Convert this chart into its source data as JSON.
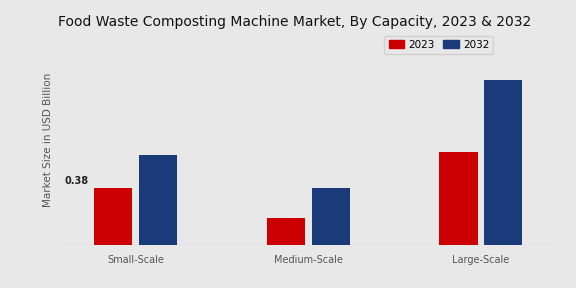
{
  "title": "Food Waste Composting Machine Market, By Capacity, 2023 & 2032",
  "ylabel": "Market Size in USD Billion",
  "categories": [
    "Small-Scale",
    "Medium-Scale",
    "Large-Scale"
  ],
  "values_2023": [
    0.38,
    0.18,
    0.62
  ],
  "values_2032": [
    0.6,
    0.38,
    1.1
  ],
  "color_2023": "#cc0000",
  "color_2032": "#1a3a7a",
  "annotation_text": "0.38",
  "background_color": "#e8e8e8",
  "bar_width": 0.22,
  "ylim": [
    0,
    1.4
  ],
  "legend_labels": [
    "2023",
    "2032"
  ],
  "title_fontsize": 10.0,
  "axis_label_fontsize": 7.5,
  "tick_fontsize": 7.0,
  "legend_fontsize": 7.5
}
